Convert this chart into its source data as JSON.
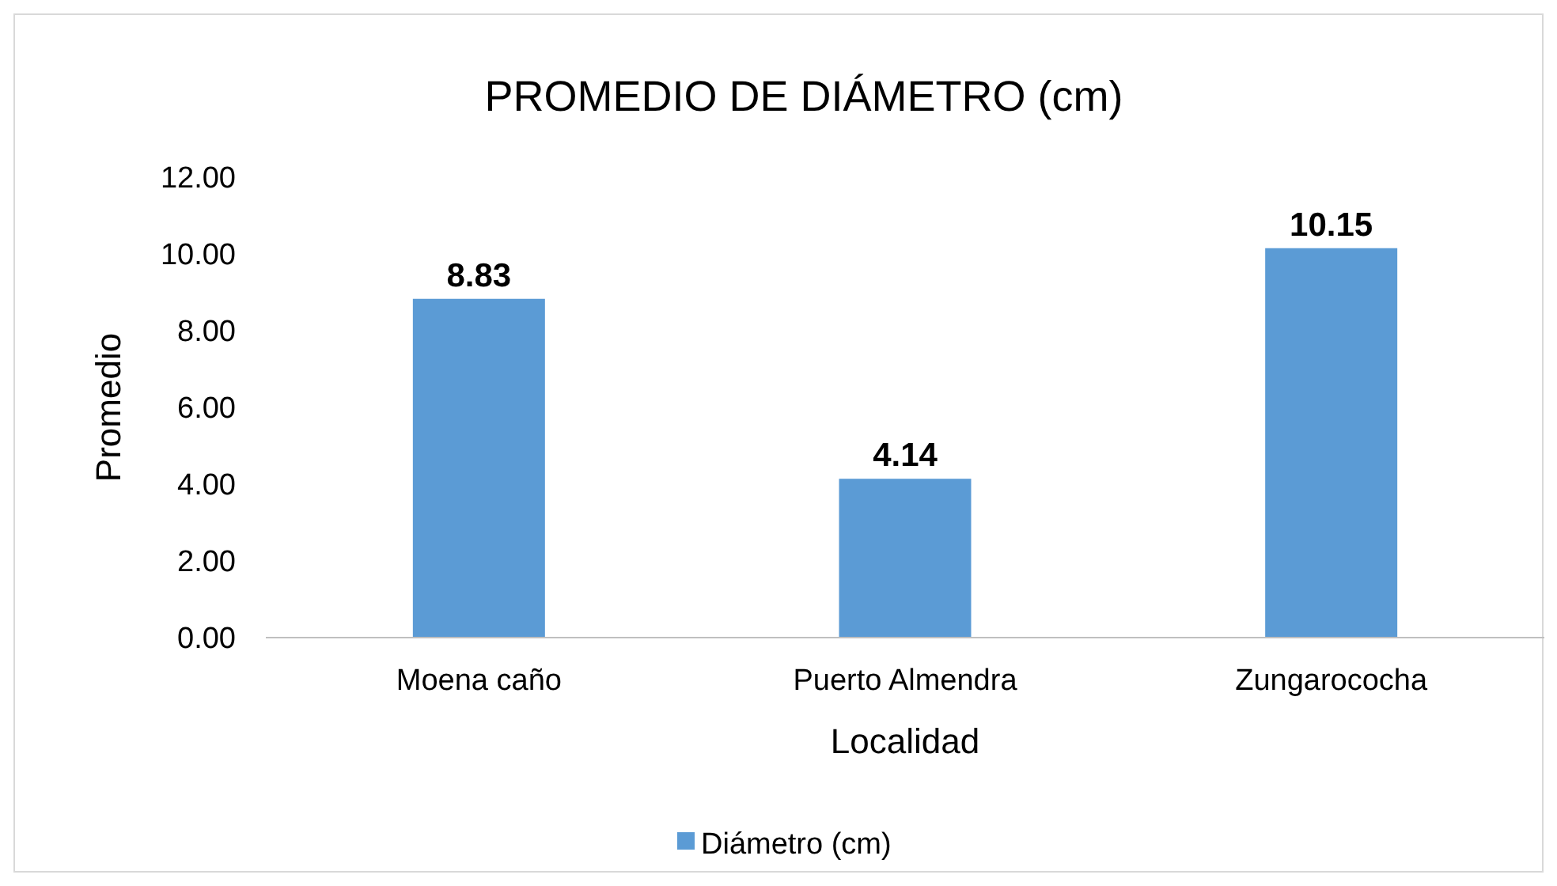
{
  "chart_data": {
    "type": "bar",
    "title": "PROMEDIO DE DIÁMETRO (cm)",
    "xlabel": "Localidad",
    "ylabel": "Promedio",
    "categories": [
      "Moena caño",
      "Puerto Almendra",
      "Zungarococha"
    ],
    "series": [
      {
        "name": "Diámetro (cm)",
        "color": "#5b9bd5",
        "values": [
          8.83,
          4.14,
          10.15
        ]
      }
    ],
    "ylim": [
      0,
      12
    ],
    "yticks": [
      {
        "value": 0,
        "label": "0.00"
      },
      {
        "value": 2,
        "label": "2.00"
      },
      {
        "value": 4,
        "label": "4.00"
      },
      {
        "value": 6,
        "label": "6.00"
      },
      {
        "value": 8,
        "label": "8.00"
      },
      {
        "value": 10,
        "label": "10.00"
      },
      {
        "value": 12,
        "label": "12.00"
      }
    ],
    "data_labels": true,
    "legend": "bottom",
    "grid": false
  }
}
